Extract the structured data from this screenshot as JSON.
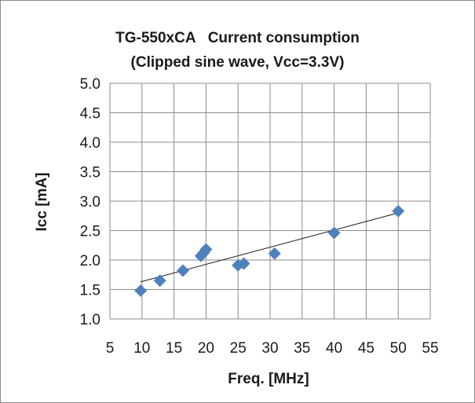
{
  "chart_data": {
    "type": "scatter",
    "title": "TG-550xCA   Current consumption",
    "subtitle": "(Clipped sine wave, Vcc=3.3V)",
    "xlabel": "Freq.  [MHz]",
    "ylabel": "Icc  [mA]",
    "xlim": [
      5,
      55
    ],
    "ylim": [
      1.0,
      5.0
    ],
    "x_ticks": [
      "5",
      "10",
      "15",
      "20",
      "25",
      "30",
      "35",
      "40",
      "45",
      "50",
      "55"
    ],
    "y_ticks": [
      "1.0",
      "1.5",
      "2.0",
      "2.5",
      "3.0",
      "3.5",
      "4.0",
      "4.5",
      "5.0"
    ],
    "grid": true,
    "legend": "none",
    "marker": "diamond",
    "marker_color": "#4f81bd",
    "series": [
      {
        "x": [
          9.8,
          12.8,
          16.4,
          19.2,
          19.6,
          20.0,
          25.0,
          25.9,
          30.7,
          40.0,
          50.0
        ],
        "y": [
          1.48,
          1.65,
          1.82,
          2.07,
          2.12,
          2.18,
          1.91,
          1.94,
          2.11,
          2.46,
          2.83
        ]
      }
    ],
    "trendline": {
      "type": "linear",
      "x": [
        9.8,
        50.0
      ],
      "y": [
        1.63,
        2.8
      ]
    }
  }
}
